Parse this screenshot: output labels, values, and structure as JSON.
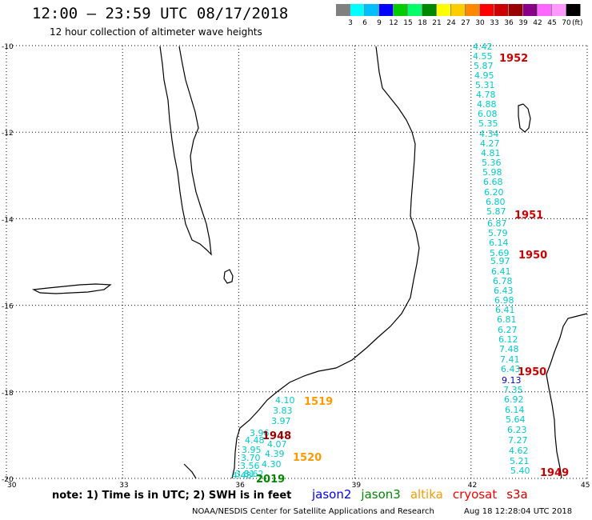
{
  "header": {
    "title": "12:00 – 23:59 UTC 08/17/2018",
    "subtitle": "12 hour collection of altimeter wave heights"
  },
  "colorbar": {
    "colors": [
      "#808080",
      "#00ffff",
      "#00bfff",
      "#0000ff",
      "#00cc00",
      "#00ff66",
      "#008800",
      "#ffff00",
      "#ffcc00",
      "#ff8800",
      "#ff0000",
      "#cc0000",
      "#990000",
      "#880088",
      "#ff66ff",
      "#ff99ff",
      "#000000"
    ],
    "ticks": [
      "3",
      "6",
      "9",
      "12",
      "15",
      "18",
      "21",
      "24",
      "27",
      "30",
      "33",
      "36",
      "39",
      "42",
      "45",
      "70"
    ],
    "unit": "(ft)"
  },
  "map": {
    "lat_labels": [
      "-10",
      "-12",
      "-14",
      "-16",
      "-18",
      "-20"
    ],
    "lon_labels": [
      "30",
      "33",
      "36",
      "39",
      "42",
      "45"
    ]
  },
  "satellite_colors": {
    "jason2": "#0000ff",
    "jason3": "#008800",
    "altika": "#ff9900",
    "cryosat": "#ff0000",
    "s3a": "#cc0000"
  },
  "observations": [
    {
      "text": "4.42",
      "color": "#00cccc"
    },
    {
      "text": "4.55",
      "color": "#00cccc"
    },
    {
      "text": "5.87",
      "color": "#00cccc"
    },
    {
      "text": "4.95",
      "color": "#00cccc"
    },
    {
      "text": "5.31",
      "color": "#00cccc"
    },
    {
      "text": "4.78",
      "color": "#00cccc"
    },
    {
      "text": "4.88",
      "color": "#00cccc"
    },
    {
      "text": "6.08",
      "color": "#00cccc"
    },
    {
      "text": "5.35",
      "color": "#00cccc"
    },
    {
      "text": "4.34",
      "color": "#00cccc"
    },
    {
      "text": "4.27",
      "color": "#00cccc"
    },
    {
      "text": "4.81",
      "color": "#00cccc"
    },
    {
      "text": "5.36",
      "color": "#00cccc"
    },
    {
      "text": "5.98",
      "color": "#00cccc"
    },
    {
      "text": "6.68",
      "color": "#00cccc"
    },
    {
      "text": "6.20",
      "color": "#00cccc"
    },
    {
      "text": "6.80",
      "color": "#00cccc"
    },
    {
      "text": "5.87",
      "color": "#00cccc"
    },
    {
      "text": "6.87",
      "color": "#00cccc"
    },
    {
      "text": "5.79",
      "color": "#00cccc"
    },
    {
      "text": "6.14",
      "color": "#00cccc"
    },
    {
      "text": "5.69",
      "color": "#00cccc"
    },
    {
      "text": "5.97",
      "color": "#00cccc"
    },
    {
      "text": "6.41",
      "color": "#00cccc"
    },
    {
      "text": "6.78",
      "color": "#00cccc"
    },
    {
      "text": "6.43",
      "color": "#00cccc"
    },
    {
      "text": "6.98",
      "color": "#00cccc"
    },
    {
      "text": "6.41",
      "color": "#00cccc"
    },
    {
      "text": "6.81",
      "color": "#00cccc"
    },
    {
      "text": "6.27",
      "color": "#00cccc"
    },
    {
      "text": "6.12",
      "color": "#00cccc"
    },
    {
      "text": "7.48",
      "color": "#00cccc"
    },
    {
      "text": "7.41",
      "color": "#00cccc"
    },
    {
      "text": "6.43",
      "color": "#00cccc"
    },
    {
      "text": "9.13",
      "color": "#0000cc"
    },
    {
      "text": "7.35",
      "color": "#00cccc"
    },
    {
      "text": "6.92",
      "color": "#00cccc"
    },
    {
      "text": "6.14",
      "color": "#00cccc"
    },
    {
      "text": "5.64",
      "color": "#00cccc"
    },
    {
      "text": "6.23",
      "color": "#00cccc"
    },
    {
      "text": "7.27",
      "color": "#00cccc"
    },
    {
      "text": "4.62",
      "color": "#00cccc"
    },
    {
      "text": "5.21",
      "color": "#00cccc"
    },
    {
      "text": "5.40",
      "color": "#00cccc"
    },
    {
      "text": "4.10",
      "color": "#00cccc"
    },
    {
      "text": "3.83",
      "color": "#00cccc"
    },
    {
      "text": "3.97",
      "color": "#00cccc"
    },
    {
      "text": "4.07",
      "color": "#00cccc"
    },
    {
      "text": "4.39",
      "color": "#00cccc"
    },
    {
      "text": "4.30",
      "color": "#00cccc"
    },
    {
      "text": "4.48",
      "color": "#00cccc"
    },
    {
      "text": "3.96",
      "color": "#00cccc"
    },
    {
      "text": "3.95",
      "color": "#00cccc"
    },
    {
      "text": "3.70",
      "color": "#00cccc"
    },
    {
      "text": "3.56",
      "color": "#00cccc"
    },
    {
      "text": "3.81",
      "color": "#00cccc"
    },
    {
      "text": "4.48",
      "color": "#00cccc"
    },
    {
      "text": "3.62",
      "color": "#00cccc"
    }
  ],
  "pass_times": [
    {
      "text": "1952",
      "color": "#cc0000"
    },
    {
      "text": "1951",
      "color": "#cc0000"
    },
    {
      "text": "1950",
      "color": "#cc0000"
    },
    {
      "text": "1950",
      "color": "#cc0000"
    },
    {
      "text": "1949",
      "color": "#cc0000"
    },
    {
      "text": "1519",
      "color": "#ff9900"
    },
    {
      "text": "1520",
      "color": "#ff9900"
    },
    {
      "text": "1948",
      "color": "#990000"
    },
    {
      "text": "2019",
      "color": "#008800"
    }
  ],
  "legend": {
    "note": "note:  1) Time is in UTC;  2) SWH is in feet",
    "satellites": [
      {
        "label": "jason2",
        "color": "#0000ff"
      },
      {
        "label": "jason3",
        "color": "#008800"
      },
      {
        "label": "altika",
        "color": "#ff9900"
      },
      {
        "label": "cryosat",
        "color": "#ff0000"
      },
      {
        "label": "s3a",
        "color": "#cc0000"
      }
    ]
  },
  "footer": {
    "credit": "NOAA/NESDIS Center for Satellite Applications and Research",
    "timestamp": "Aug 18 12:28:04 UTC 2018"
  }
}
